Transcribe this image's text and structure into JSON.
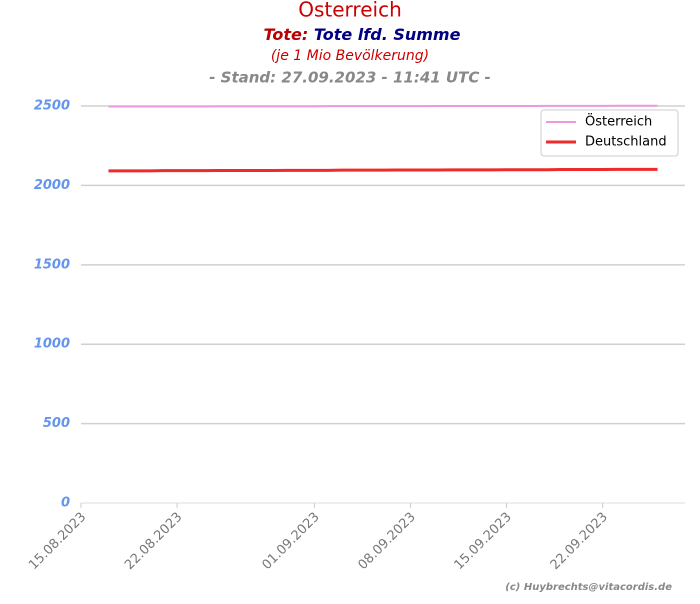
{
  "chart_data": {
    "type": "line",
    "title": "Österreich",
    "subtitle_prefix": "Tote:",
    "subtitle": "Tote lfd. Summe",
    "note": "(je 1 Mio Bevölkerung)",
    "stand": "- Stand: 27.09.2023 - 11:41 UTC -",
    "footer": "(c) Huybrechts@vitacordis.de",
    "x": [
      "17.08.2023",
      "18.08.2023",
      "19.08.2023",
      "20.08.2023",
      "21.08.2023",
      "22.08.2023",
      "23.08.2023",
      "24.08.2023",
      "25.08.2023",
      "26.08.2023",
      "27.08.2023",
      "28.08.2023",
      "29.08.2023",
      "30.08.2023",
      "31.08.2023",
      "01.09.2023",
      "02.09.2023",
      "03.09.2023",
      "04.09.2023",
      "05.09.2023",
      "06.09.2023",
      "07.09.2023",
      "08.09.2023",
      "09.09.2023",
      "10.09.2023",
      "11.09.2023",
      "12.09.2023",
      "13.09.2023",
      "14.09.2023",
      "15.09.2023",
      "16.09.2023",
      "17.09.2023",
      "18.09.2023",
      "19.09.2023",
      "20.09.2023",
      "21.09.2023",
      "22.09.2023",
      "23.09.2023",
      "24.09.2023",
      "25.09.2023",
      "26.09.2023"
    ],
    "series": [
      {
        "name": "Österreich",
        "color": "#ee99dd",
        "width": 2,
        "values": [
          2497,
          2497,
          2497,
          2497,
          2497,
          2497,
          2497,
          2497,
          2498,
          2498,
          2498,
          2498,
          2498,
          2498,
          2498,
          2498,
          2499,
          2499,
          2499,
          2499,
          2499,
          2499,
          2499,
          2499,
          2500,
          2500,
          2500,
          2500,
          2500,
          2500,
          2500,
          2500,
          2501,
          2501,
          2501,
          2501,
          2501,
          2502,
          2502,
          2502,
          2502
        ]
      },
      {
        "name": "Deutschland",
        "color": "#ee2a2a",
        "width": 3,
        "values": [
          2092,
          2092,
          2092,
          2092,
          2093,
          2093,
          2093,
          2093,
          2094,
          2094,
          2094,
          2094,
          2094,
          2095,
          2095,
          2095,
          2095,
          2096,
          2096,
          2096,
          2096,
          2097,
          2097,
          2097,
          2097,
          2098,
          2098,
          2098,
          2098,
          2099,
          2099,
          2099,
          2099,
          2100,
          2100,
          2100,
          2100,
          2101,
          2101,
          2101,
          2101
        ]
      }
    ],
    "xlim": [
      "15.08.2023",
      "28.09.2023"
    ],
    "xticks": [
      "15.08.2023",
      "22.08.2023",
      "01.09.2023",
      "08.09.2023",
      "15.09.2023",
      "22.09.2023"
    ],
    "ylim": [
      0,
      2560
    ],
    "yticks": [
      0,
      500,
      1000,
      1500,
      2000,
      2500
    ],
    "grid": true,
    "legend": "upper right"
  }
}
